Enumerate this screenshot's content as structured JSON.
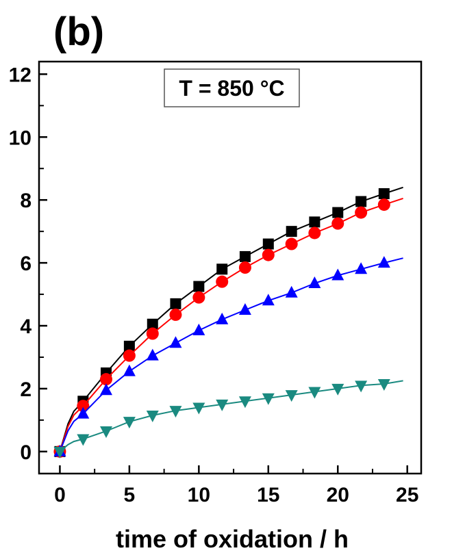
{
  "chart_data": {
    "type": "line",
    "panel_label": "(b)",
    "title": "",
    "xlabel": "time of oxidation / h",
    "ylabel": "",
    "annotation": "T = 850 °C",
    "xlim": [
      -1.5,
      26
    ],
    "ylim": [
      -0.7,
      12.4
    ],
    "x_ticks": [
      "0",
      "5",
      "10",
      "15",
      "20",
      "25"
    ],
    "y_ticks": [
      "0",
      "2",
      "4",
      "6",
      "8",
      "10",
      "12"
    ],
    "legend": "none",
    "grid": false,
    "series": [
      {
        "color": "#000000",
        "marker": "square",
        "x": [
          0,
          1.67,
          3.33,
          5,
          6.67,
          8.33,
          10,
          11.67,
          13.33,
          15,
          16.67,
          18.33,
          20,
          21.67,
          23.33
        ],
        "y": [
          0,
          1.6,
          2.5,
          3.35,
          4.05,
          4.7,
          5.25,
          5.8,
          6.2,
          6.6,
          7.0,
          7.3,
          7.6,
          7.95,
          8.2
        ],
        "fit_end": [
          24.7,
          8.4
        ]
      },
      {
        "color": "#ff0000",
        "marker": "circle",
        "x": [
          0,
          1.67,
          3.33,
          5,
          6.67,
          8.33,
          10,
          11.67,
          13.33,
          15,
          16.67,
          18.33,
          20,
          21.67,
          23.33
        ],
        "y": [
          0,
          1.45,
          2.3,
          3.05,
          3.75,
          4.35,
          4.9,
          5.4,
          5.85,
          6.25,
          6.6,
          6.95,
          7.25,
          7.6,
          7.85
        ],
        "fit_end": [
          24.7,
          8.05
        ]
      },
      {
        "color": "#0000ff",
        "marker": "triangle-up",
        "x": [
          0,
          1.67,
          3.33,
          5,
          6.67,
          8.33,
          10,
          11.67,
          13.33,
          15,
          16.67,
          18.33,
          20,
          21.67,
          23.33
        ],
        "y": [
          0,
          1.2,
          1.95,
          2.55,
          3.05,
          3.45,
          3.85,
          4.2,
          4.5,
          4.8,
          5.05,
          5.35,
          5.6,
          5.8,
          6.0
        ],
        "fit_end": [
          24.7,
          6.15
        ]
      },
      {
        "color": "#1a8a80",
        "marker": "triangle-down",
        "x": [
          0,
          1.67,
          3.33,
          5,
          6.67,
          8.33,
          10,
          11.67,
          13.33,
          15,
          16.67,
          18.33,
          20,
          21.67,
          23.33
        ],
        "y": [
          0,
          0.4,
          0.65,
          0.95,
          1.15,
          1.3,
          1.4,
          1.5,
          1.6,
          1.7,
          1.8,
          1.9,
          2.0,
          2.1,
          2.15
        ],
        "fit_end": [
          24.7,
          2.25
        ]
      }
    ]
  }
}
